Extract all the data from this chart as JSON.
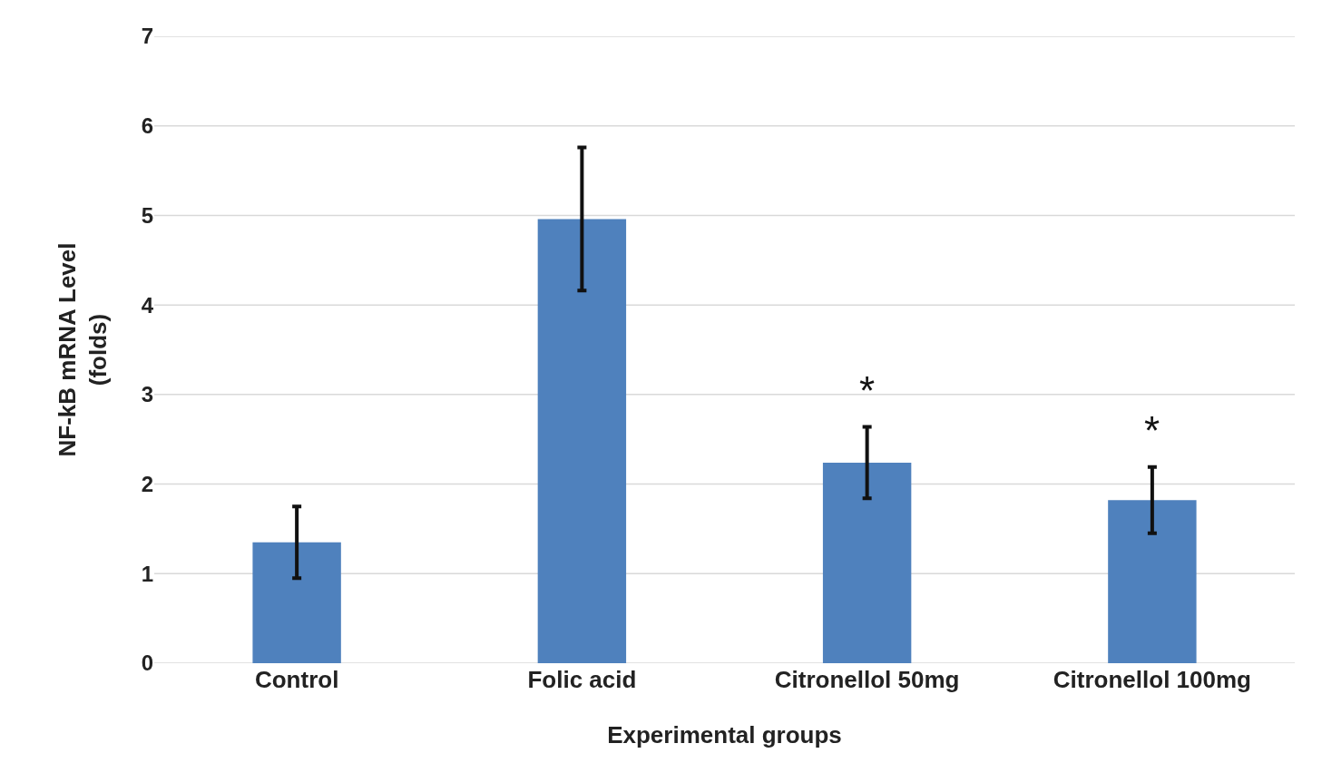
{
  "chart_data": {
    "type": "bar",
    "xlabel": "Experimental groups",
    "ylabel": "NF-kB mRNA Level\n(folds)",
    "categories": [
      "Control",
      "Folic acid",
      "Citronellol 50mg",
      "Citronellol 100mg"
    ],
    "values": [
      1.35,
      4.96,
      2.24,
      1.82
    ],
    "errors": [
      0.4,
      0.8,
      0.4,
      0.37
    ],
    "color": "#4f81bd",
    "ylim": [
      0,
      7
    ],
    "yticks": [
      0,
      1,
      2,
      3,
      4,
      5,
      6,
      7
    ],
    "grid": "y",
    "legend": false,
    "annotations": [
      "*",
      "*"
    ]
  }
}
